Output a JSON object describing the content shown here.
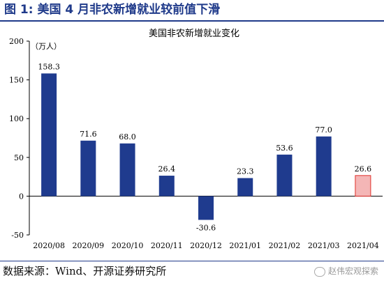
{
  "figure_title": "图 1:  美国 4 月非农新增就业较前值下滑",
  "source_text": "数据来源：Wind、开源证券研究所",
  "watermark_text": "赵伟宏观探索",
  "colors": {
    "title": "#1f3a8a",
    "bar": "#1f3b8e",
    "highlight_fill": "#f4b6b6",
    "highlight_stroke": "#e0302a"
  },
  "chart_data": {
    "type": "bar",
    "title": "美国非农新增就业变化",
    "unit_label": "（万人）",
    "categories": [
      "2020/08",
      "2020/09",
      "2020/10",
      "2020/11",
      "2020/12",
      "2021/01",
      "2021/02",
      "2021/03",
      "2021/04"
    ],
    "values": [
      158.3,
      71.6,
      68.0,
      26.4,
      -30.6,
      23.3,
      53.6,
      77.0,
      26.6
    ],
    "value_labels": [
      "158.3",
      "71.6",
      "68.0",
      "26.4",
      "-30.6",
      "23.3",
      "53.6",
      "77.0",
      "26.6"
    ],
    "highlight_index": 8,
    "ylim": [
      -50,
      200
    ],
    "yticks": [
      -50,
      0,
      50,
      100,
      150,
      200
    ],
    "grid": false
  }
}
